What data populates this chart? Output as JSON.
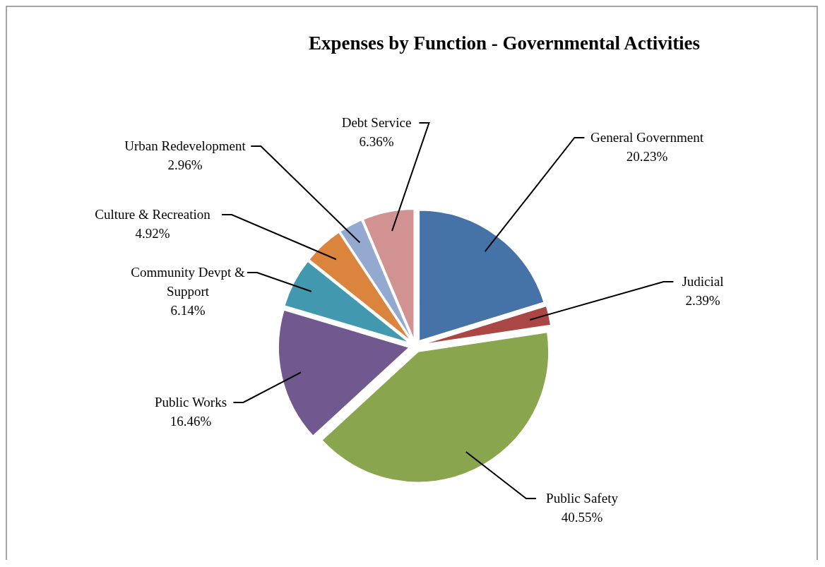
{
  "chart_data": {
    "type": "pie",
    "title": "Expenses by Function - Governmental Activities",
    "categories": [
      "General Government",
      "Judicial",
      "Public Safety",
      "Public Works",
      "Community Devpt & Support",
      "Culture & Recreation",
      "Urban Redevelopment",
      "Debt Service"
    ],
    "values": [
      20.23,
      2.39,
      40.55,
      16.46,
      6.14,
      4.92,
      2.96,
      6.36
    ],
    "value_labels": [
      "20.23%",
      "2.39%",
      "40.55%",
      "16.46%",
      "6.14%",
      "4.92%",
      "2.96%",
      "6.36%"
    ],
    "colors": [
      "#4572a7",
      "#aa4643",
      "#89a54e",
      "#71588f",
      "#4198af",
      "#db843d",
      "#93a9cf",
      "#d19392"
    ]
  }
}
